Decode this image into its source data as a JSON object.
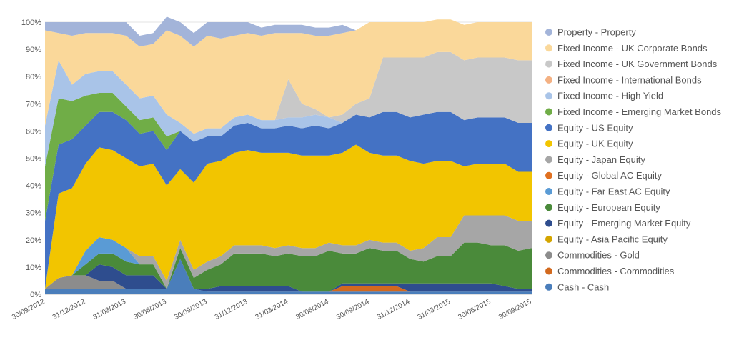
{
  "chart_data": {
    "type": "area",
    "stacked": true,
    "title": "",
    "xlabel": "",
    "ylabel": "",
    "ylim": [
      0,
      100
    ],
    "y_ticks": [
      "0%",
      "10%",
      "20%",
      "30%",
      "40%",
      "50%",
      "60%",
      "70%",
      "80%",
      "90%",
      "100%"
    ],
    "x_tick_labels": [
      "30/09/2012",
      "31/12/2012",
      "31/03/2013",
      "30/06/2013",
      "30/09/2013",
      "31/12/2013",
      "31/03/2014",
      "30/06/2014",
      "30/09/2014",
      "31/12/2014",
      "31/03/2015",
      "30/06/2015",
      "30/09/2015"
    ],
    "x_dates": [
      "2012-09-30",
      "2012-10-31",
      "2012-11-30",
      "2012-12-31",
      "2013-01-31",
      "2013-02-28",
      "2013-03-31",
      "2013-04-30",
      "2013-05-31",
      "2013-06-30",
      "2013-07-31",
      "2013-08-31",
      "2013-09-30",
      "2013-10-31",
      "2013-11-30",
      "2013-12-31",
      "2014-01-31",
      "2014-02-28",
      "2014-03-31",
      "2014-04-30",
      "2014-05-31",
      "2014-06-30",
      "2014-07-31",
      "2014-08-31",
      "2014-09-30",
      "2014-10-31",
      "2014-11-30",
      "2014-12-31",
      "2015-01-31",
      "2015-02-28",
      "2015-03-31",
      "2015-04-30",
      "2015-05-31",
      "2015-06-30",
      "2015-07-31",
      "2015-08-31",
      "2015-09-30"
    ],
    "legend_position": "right",
    "grid": "horizontal",
    "series": [
      {
        "name": "Cash - Cash",
        "color": "#4a7ebb",
        "values": [
          2,
          2,
          2,
          2,
          2,
          2,
          2,
          2,
          2,
          2,
          13,
          2,
          1,
          1,
          1,
          1,
          1,
          1,
          1,
          1,
          1,
          1,
          1,
          1,
          1,
          1,
          1,
          1,
          1,
          1,
          1,
          1,
          1,
          1,
          1,
          1,
          1
        ]
      },
      {
        "name": "Commodities - Commodities",
        "color": "#d2691e",
        "values": [
          0,
          0,
          0,
          0,
          0,
          0,
          0,
          0,
          0,
          0,
          0,
          0,
          0,
          0,
          0,
          0,
          0,
          0,
          0,
          0,
          0,
          0,
          2,
          2,
          2,
          2,
          2,
          0,
          0,
          0,
          0,
          0,
          0,
          0,
          0,
          0,
          0
        ]
      },
      {
        "name": "Commodities - Gold",
        "color": "#8c8c8c",
        "values": [
          0,
          4,
          5,
          5,
          3,
          3,
          0,
          0,
          0,
          0,
          0,
          0,
          0,
          0,
          0,
          0,
          0,
          0,
          0,
          0,
          0,
          0,
          0,
          0,
          0,
          0,
          0,
          0,
          0,
          0,
          0,
          0,
          0,
          0,
          0,
          0,
          0
        ]
      },
      {
        "name": "Equity - Asia Pacific Equity",
        "color": "#d4a500",
        "values": [
          0,
          0,
          0,
          0,
          0,
          0,
          0,
          0,
          0,
          0,
          0,
          0,
          0,
          0,
          0,
          0,
          0,
          0,
          0,
          0,
          0,
          0,
          0,
          0,
          0,
          0,
          0,
          0,
          0,
          0,
          0,
          0,
          0,
          0,
          0,
          0,
          0
        ]
      },
      {
        "name": "Equity - Emerging Market Equity",
        "color": "#2e4d8e",
        "values": [
          0,
          0,
          0,
          0,
          6,
          5,
          5,
          5,
          5,
          0,
          0,
          0,
          1,
          2,
          2,
          2,
          2,
          2,
          2,
          0,
          0,
          0,
          1,
          1,
          1,
          1,
          1,
          3,
          3,
          3,
          3,
          3,
          3,
          3,
          2,
          1,
          1
        ]
      },
      {
        "name": "Equity - European Equity",
        "color": "#4a8a3a",
        "values": [
          0,
          0,
          0,
          4,
          4,
          5,
          5,
          4,
          4,
          0,
          4,
          4,
          7,
          8,
          12,
          12,
          12,
          11,
          12,
          13,
          13,
          15,
          11,
          11,
          13,
          12,
          12,
          9,
          8,
          10,
          10,
          15,
          15,
          14,
          15,
          14,
          15
        ]
      },
      {
        "name": "Equity - Far East AC Equity",
        "color": "#5a9bd5",
        "values": [
          0,
          0,
          0,
          5,
          6,
          5,
          5,
          0,
          0,
          0,
          0,
          0,
          0,
          0,
          0,
          0,
          0,
          0,
          0,
          0,
          0,
          0,
          0,
          0,
          0,
          0,
          0,
          0,
          0,
          0,
          0,
          0,
          0,
          0,
          0,
          0,
          0
        ]
      },
      {
        "name": "Equity - Global AC Equity",
        "color": "#e07020",
        "values": [
          0,
          0,
          0,
          0,
          0,
          0,
          0,
          0,
          0,
          0,
          0,
          0,
          0,
          0,
          0,
          0,
          0,
          0,
          0,
          0,
          0,
          0,
          0,
          0,
          0,
          0,
          0,
          0,
          0,
          0,
          0,
          0,
          0,
          0,
          0,
          0,
          0
        ]
      },
      {
        "name": "Equity - Japan Equity",
        "color": "#a6a6a6",
        "values": [
          0,
          0,
          0,
          0,
          0,
          0,
          0,
          3,
          3,
          3,
          3,
          3,
          3,
          3,
          3,
          3,
          3,
          3,
          3,
          3,
          3,
          3,
          3,
          3,
          3,
          3,
          3,
          3,
          5,
          7,
          7,
          10,
          10,
          11,
          11,
          11,
          10
        ]
      },
      {
        "name": "Equity - UK Equity",
        "color": "#f2c500",
        "values": [
          0,
          31,
          32,
          32,
          33,
          33,
          33,
          33,
          34,
          35,
          26,
          32,
          36,
          35,
          34,
          35,
          34,
          35,
          34,
          34,
          34,
          32,
          34,
          37,
          32,
          32,
          32,
          33,
          31,
          28,
          28,
          18,
          19,
          19,
          19,
          18,
          18
        ]
      },
      {
        "name": "Equity - US Equity",
        "color": "#4472c4",
        "values": [
          25,
          18,
          18,
          14,
          13,
          14,
          14,
          12,
          12,
          13,
          14,
          15,
          10,
          9,
          10,
          10,
          9,
          9,
          10,
          10,
          11,
          10,
          11,
          11,
          13,
          16,
          16,
          16,
          18,
          18,
          18,
          17,
          17,
          17,
          17,
          18,
          18
        ]
      },
      {
        "name": "Fixed Income - Emerging Market Bonds",
        "color": "#70ad47",
        "values": [
          20,
          17,
          14,
          11,
          7,
          7,
          5,
          5,
          5,
          5,
          0,
          0,
          0,
          0,
          0,
          0,
          0,
          0,
          0,
          0,
          0,
          0,
          0,
          0,
          0,
          0,
          0,
          0,
          0,
          0,
          0,
          0,
          0,
          0,
          0,
          0,
          0
        ]
      },
      {
        "name": "Fixed Income - High Yield",
        "color": "#a9c4e8",
        "values": [
          15,
          14,
          6,
          8,
          8,
          8,
          8,
          8,
          8,
          8,
          3,
          3,
          3,
          3,
          3,
          3,
          3,
          3,
          3,
          4,
          4,
          4,
          0,
          0,
          0,
          0,
          0,
          0,
          0,
          0,
          0,
          0,
          0,
          0,
          0,
          0,
          0
        ]
      },
      {
        "name": "Fixed Income - International Bonds",
        "color": "#f4b183",
        "values": [
          0,
          0,
          0,
          0,
          0,
          0,
          0,
          0,
          0,
          0,
          0,
          0,
          0,
          0,
          0,
          0,
          0,
          0,
          0,
          0,
          0,
          0,
          0,
          0,
          0,
          0,
          0,
          0,
          0,
          0,
          0,
          0,
          0,
          0,
          0,
          0,
          0
        ]
      },
      {
        "name": "Fixed Income - UK Government Bonds",
        "color": "#c8c8c8",
        "values": [
          0,
          0,
          0,
          0,
          0,
          0,
          0,
          0,
          0,
          0,
          0,
          0,
          0,
          0,
          0,
          0,
          0,
          0,
          14,
          5,
          2,
          0,
          3,
          4,
          7,
          20,
          20,
          22,
          21,
          22,
          22,
          22,
          22,
          22,
          22,
          23,
          23
        ]
      },
      {
        "name": "Fixed Income - UK Corporate Bonds",
        "color": "#fad89a",
        "values": [
          35,
          10,
          18,
          15,
          14,
          14,
          18,
          19,
          19,
          31,
          32,
          32,
          34,
          33,
          30,
          30,
          31,
          32,
          17,
          26,
          27,
          30,
          30,
          27,
          28,
          13,
          13,
          13,
          13,
          12,
          12,
          13,
          13,
          13,
          13,
          14,
          14
        ]
      },
      {
        "name": "Property - Property",
        "color": "#a3b4d9",
        "values": [
          3,
          4,
          5,
          4,
          4,
          4,
          5,
          4,
          4,
          5,
          5,
          5,
          5,
          6,
          5,
          4,
          3,
          3,
          3,
          3,
          3,
          3,
          3,
          0,
          0,
          0,
          0,
          0,
          0,
          0,
          0,
          0,
          0,
          0,
          0,
          0,
          0
        ]
      }
    ]
  }
}
